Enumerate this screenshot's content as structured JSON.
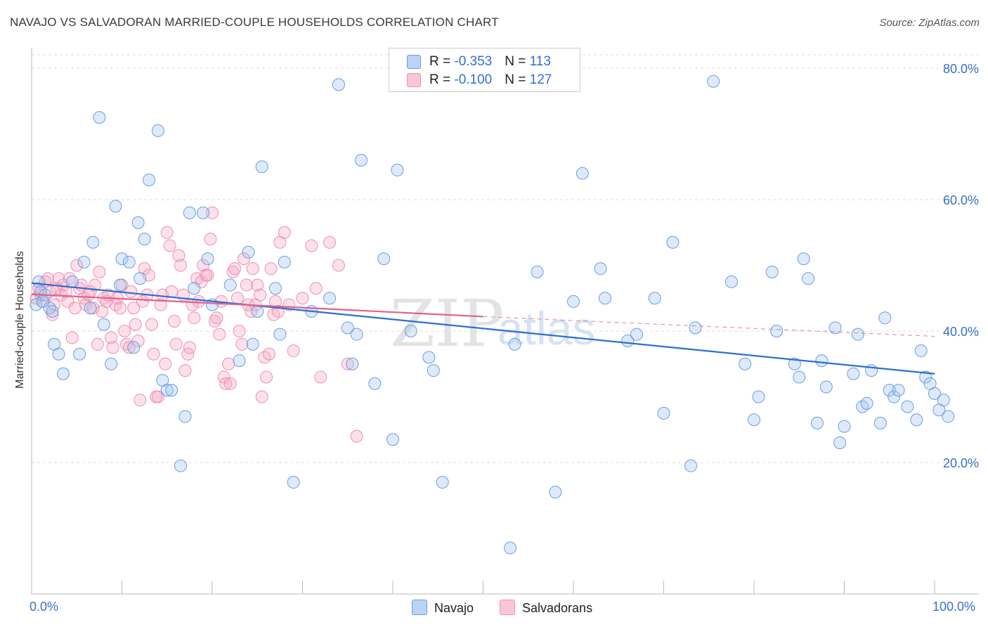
{
  "title": "NAVAJO VS SALVADORAN MARRIED-COUPLE HOUSEHOLDS CORRELATION CHART",
  "source": "Source: ZipAtlas.com",
  "watermark": {
    "part1": "ZIP",
    "part2": "atlas"
  },
  "legend": {
    "navajo": {
      "r_label": "R = ",
      "r_value": "-0.353",
      "n_label": "N = ",
      "n_value": "113"
    },
    "salvadoran": {
      "r_label": "R = ",
      "r_value": "-0.100",
      "n_label": "N = ",
      "n_value": "127"
    }
  },
  "bottom_legend": {
    "navajo": "Navajo",
    "salvadoran": "Salvadorans"
  },
  "x_axis_labels": {
    "min": "0.0%",
    "max": "100.0%"
  },
  "chart_data": {
    "type": "scatter",
    "title": "NAVAJO VS SALVADORAN MARRIED-COUPLE HOUSEHOLDS CORRELATION CHART",
    "xlabel": "",
    "ylabel": "Married-couple Households",
    "xlim": [
      0,
      100
    ],
    "ylim": [
      0,
      83
    ],
    "y_ticks": [
      20,
      40,
      60,
      80
    ],
    "y_tick_labels": [
      "20.0%",
      "40.0%",
      "60.0%",
      "80.0%"
    ],
    "grid": "horizontal dashed",
    "colors": {
      "navajo": "#6a9ee0",
      "salvadoran": "#ef8fb0",
      "navajo_line": "#2b6fd2",
      "salvadoran_line": "#e0628c",
      "tick_label": "#3a6fc9"
    },
    "series": [
      {
        "name": "Navajo",
        "trend": {
          "x0": 0,
          "y0": 47.3,
          "x1": 100,
          "y1": 33.5,
          "dashed_from": null
        },
        "points": [
          [
            0.5,
            44
          ],
          [
            0.8,
            47.5
          ],
          [
            1,
            46
          ],
          [
            1.2,
            44.5
          ],
          [
            1.5,
            45.5
          ],
          [
            2,
            43.5
          ],
          [
            2.3,
            43
          ],
          [
            2.5,
            38
          ],
          [
            3,
            36.5
          ],
          [
            3.5,
            33.5
          ],
          [
            4.5,
            47.5
          ],
          [
            5.3,
            36.5
          ],
          [
            5.8,
            50.5
          ],
          [
            6.5,
            43.5
          ],
          [
            6.8,
            53.5
          ],
          [
            7.5,
            72.5
          ],
          [
            8,
            41
          ],
          [
            8.8,
            35
          ],
          [
            9.3,
            59
          ],
          [
            9.8,
            47
          ],
          [
            10,
            51
          ],
          [
            10.8,
            50.5
          ],
          [
            11.3,
            37.5
          ],
          [
            11.8,
            56.5
          ],
          [
            12,
            48
          ],
          [
            12.5,
            54
          ],
          [
            13,
            63
          ],
          [
            14,
            70.5
          ],
          [
            14.5,
            32.5
          ],
          [
            15,
            31
          ],
          [
            15.5,
            31
          ],
          [
            16.5,
            19.5
          ],
          [
            17,
            27
          ],
          [
            17.5,
            58
          ],
          [
            18,
            46.5
          ],
          [
            19,
            58
          ],
          [
            19.5,
            51
          ],
          [
            20,
            44
          ],
          [
            22,
            47
          ],
          [
            23,
            35.5
          ],
          [
            24,
            52
          ],
          [
            24.5,
            38
          ],
          [
            25,
            43
          ],
          [
            25.5,
            65
          ],
          [
            27,
            46.5
          ],
          [
            27.5,
            39.5
          ],
          [
            28,
            50.5
          ],
          [
            29,
            17
          ],
          [
            31,
            43
          ],
          [
            33,
            45
          ],
          [
            34,
            77.5
          ],
          [
            35,
            40.5
          ],
          [
            35.5,
            35
          ],
          [
            36,
            39.5
          ],
          [
            36.5,
            66
          ],
          [
            38,
            32
          ],
          [
            39,
            51
          ],
          [
            40,
            23.5
          ],
          [
            40.5,
            64.5
          ],
          [
            42,
            40
          ],
          [
            44,
            36
          ],
          [
            44.5,
            34
          ],
          [
            45.5,
            17
          ],
          [
            53,
            7
          ],
          [
            53.5,
            38
          ],
          [
            56,
            49
          ],
          [
            58,
            15.5
          ],
          [
            60,
            44.5
          ],
          [
            61,
            64
          ],
          [
            63,
            49.5
          ],
          [
            63.5,
            45
          ],
          [
            66,
            38.5
          ],
          [
            67,
            39.5
          ],
          [
            69,
            45
          ],
          [
            70,
            27.5
          ],
          [
            71,
            53.5
          ],
          [
            73,
            19.5
          ],
          [
            73.5,
            40.5
          ],
          [
            75.5,
            78
          ],
          [
            77.5,
            47.5
          ],
          [
            79,
            35
          ],
          [
            80,
            26.5
          ],
          [
            80.5,
            30
          ],
          [
            82,
            49
          ],
          [
            82.5,
            40
          ],
          [
            84.5,
            35
          ],
          [
            85,
            33
          ],
          [
            85.5,
            51
          ],
          [
            86,
            48
          ],
          [
            87,
            26
          ],
          [
            87.5,
            35.5
          ],
          [
            88,
            31.5
          ],
          [
            89,
            40.5
          ],
          [
            89.5,
            23
          ],
          [
            90,
            25.5
          ],
          [
            91,
            33.5
          ],
          [
            91.5,
            39.5
          ],
          [
            92,
            28.5
          ],
          [
            92.5,
            29
          ],
          [
            93,
            34
          ],
          [
            94,
            26
          ],
          [
            94.5,
            42
          ],
          [
            95,
            31
          ],
          [
            95.5,
            30
          ],
          [
            96,
            31
          ],
          [
            97,
            28.5
          ],
          [
            98,
            26.5
          ],
          [
            98.5,
            37
          ],
          [
            99,
            33
          ],
          [
            99.5,
            32
          ],
          [
            100,
            30.5
          ],
          [
            100.5,
            28
          ],
          [
            101,
            29.5
          ],
          [
            101.5,
            27
          ]
        ]
      },
      {
        "name": "Salvadorans",
        "trend": {
          "x0": 0,
          "y0": 45.6,
          "x1": 50,
          "y1": 42.2,
          "dashed_from": 50,
          "x2": 100,
          "y2": 39.2
        },
        "points": [
          [
            0.5,
            45
          ],
          [
            0.8,
            46.5
          ],
          [
            1,
            45.5
          ],
          [
            1.3,
            44.5
          ],
          [
            1.5,
            47.5
          ],
          [
            1.8,
            48
          ],
          [
            2,
            46
          ],
          [
            2.3,
            42.5
          ],
          [
            2.5,
            44
          ],
          [
            2.8,
            46.5
          ],
          [
            3,
            48
          ],
          [
            3.3,
            45.5
          ],
          [
            3.5,
            47
          ],
          [
            3.8,
            46
          ],
          [
            4,
            44.5
          ],
          [
            4.2,
            48
          ],
          [
            4.5,
            39
          ],
          [
            4.8,
            43.5
          ],
          [
            5,
            50
          ],
          [
            5.3,
            46.5
          ],
          [
            5.5,
            47
          ],
          [
            5.8,
            45
          ],
          [
            6,
            44
          ],
          [
            6.3,
            45.5
          ],
          [
            6.5,
            46
          ],
          [
            6.8,
            43.5
          ],
          [
            7,
            47
          ],
          [
            7.3,
            38
          ],
          [
            7.5,
            49
          ],
          [
            7.8,
            43
          ],
          [
            8,
            45
          ],
          [
            8.3,
            44.5
          ],
          [
            8.5,
            45.5
          ],
          [
            8.8,
            39
          ],
          [
            9,
            37.5
          ],
          [
            9.3,
            44
          ],
          [
            9.5,
            45
          ],
          [
            9.8,
            43.5
          ],
          [
            10,
            47
          ],
          [
            10.3,
            40
          ],
          [
            10.5,
            38
          ],
          [
            10.8,
            37.5
          ],
          [
            11,
            46
          ],
          [
            11.3,
            43.5
          ],
          [
            11.5,
            41
          ],
          [
            11.8,
            38.5
          ],
          [
            12,
            29.5
          ],
          [
            12.3,
            44.5
          ],
          [
            12.5,
            49.5
          ],
          [
            12.8,
            45.5
          ],
          [
            13,
            48.5
          ],
          [
            13.3,
            41
          ],
          [
            13.5,
            36.5
          ],
          [
            13.8,
            30
          ],
          [
            14,
            30
          ],
          [
            14.3,
            44
          ],
          [
            14.5,
            45.5
          ],
          [
            14.8,
            35
          ],
          [
            15,
            55
          ],
          [
            15.3,
            53
          ],
          [
            15.5,
            46
          ],
          [
            15.8,
            41.5
          ],
          [
            16,
            38
          ],
          [
            16.3,
            51.5
          ],
          [
            16.5,
            50
          ],
          [
            16.8,
            45.5
          ],
          [
            17,
            34
          ],
          [
            17.3,
            36.5
          ],
          [
            17.5,
            37.5
          ],
          [
            17.8,
            44
          ],
          [
            18,
            42
          ],
          [
            18.3,
            48
          ],
          [
            18.5,
            44.5
          ],
          [
            18.8,
            47.5
          ],
          [
            19,
            50
          ],
          [
            19.3,
            48.5
          ],
          [
            19.5,
            48.5
          ],
          [
            19.8,
            54
          ],
          [
            20,
            58
          ],
          [
            20.3,
            41.5
          ],
          [
            20.5,
            42
          ],
          [
            20.8,
            39.5
          ],
          [
            21,
            44.5
          ],
          [
            21.3,
            33
          ],
          [
            21.5,
            32
          ],
          [
            21.8,
            35
          ],
          [
            22,
            32
          ],
          [
            22.3,
            49
          ],
          [
            22.5,
            49.5
          ],
          [
            22.8,
            45
          ],
          [
            23,
            40
          ],
          [
            23.3,
            38
          ],
          [
            23.5,
            51
          ],
          [
            23.8,
            47
          ],
          [
            24,
            44
          ],
          [
            24.3,
            43
          ],
          [
            24.5,
            49.5
          ],
          [
            24.8,
            44
          ],
          [
            25,
            47
          ],
          [
            25.3,
            45.5
          ],
          [
            25.5,
            30
          ],
          [
            25.8,
            36
          ],
          [
            26,
            33
          ],
          [
            26.3,
            36.5
          ],
          [
            26.5,
            49.5
          ],
          [
            26.8,
            42.5
          ],
          [
            27,
            44.5
          ],
          [
            27.3,
            43
          ],
          [
            27.5,
            53.5
          ],
          [
            28,
            55
          ],
          [
            28.5,
            44
          ],
          [
            29,
            37
          ],
          [
            30,
            45
          ],
          [
            31,
            53
          ],
          [
            31.5,
            46.5
          ],
          [
            32,
            33
          ],
          [
            33,
            53.5
          ],
          [
            34,
            50
          ],
          [
            35,
            35
          ],
          [
            36,
            24
          ]
        ]
      }
    ]
  }
}
